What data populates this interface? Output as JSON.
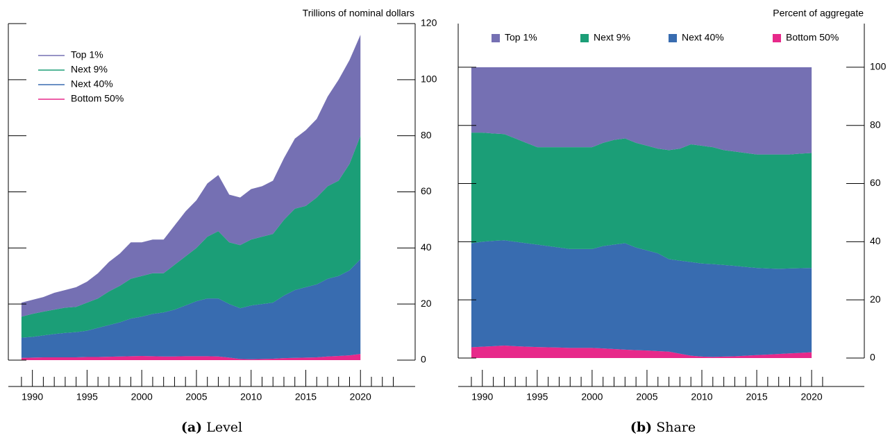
{
  "chart_data": [
    {
      "type": "area",
      "caption_label": "(a)",
      "caption": "Level",
      "y_label": "Trillions of nominal dollars",
      "legend": "upper left",
      "legend_marker": "line",
      "xlim": [
        1987.8,
        2025
      ],
      "xticks": [
        1990,
        1995,
        2000,
        2005,
        2010,
        2015,
        2020
      ],
      "xminorticks": [
        1989,
        1991,
        1992,
        1993,
        1994,
        1996,
        1997,
        1998,
        1999,
        2001,
        2002,
        2003,
        2004,
        2006,
        2007,
        2008,
        2009,
        2011,
        2012,
        2013,
        2014,
        2016,
        2017,
        2018,
        2019,
        2021,
        2022,
        2023
      ],
      "ylim": [
        0,
        120
      ],
      "yticks": [
        0,
        20,
        40,
        60,
        80,
        100,
        120
      ],
      "x": [
        1989,
        1990,
        1991,
        1992,
        1993,
        1994,
        1995,
        1996,
        1997,
        1998,
        1999,
        2000,
        2001,
        2002,
        2003,
        2004,
        2005,
        2006,
        2007,
        2008,
        2009,
        2010,
        2011,
        2012,
        2013,
        2014,
        2015,
        2016,
        2017,
        2018,
        2019,
        2020
      ],
      "series": [
        {
          "name": "Bottom 50%",
          "color": "#e7298a",
          "values": [
            0.8,
            0.9,
            1.0,
            1.0,
            1.0,
            1.0,
            1.1,
            1.1,
            1.2,
            1.3,
            1.4,
            1.5,
            1.4,
            1.3,
            1.3,
            1.4,
            1.4,
            1.4,
            1.3,
            0.9,
            0.4,
            0.3,
            0.4,
            0.5,
            0.7,
            0.8,
            0.9,
            1.0,
            1.3,
            1.5,
            1.7,
            2.2
          ]
        },
        {
          "name": "Next 40%",
          "color": "#386cb0",
          "values": [
            7.2,
            7.4,
            7.8,
            8.3,
            8.7,
            9.0,
            9.4,
            10.4,
            11.3,
            12.2,
            13.4,
            14.0,
            15.1,
            15.7,
            16.7,
            18.1,
            19.6,
            20.6,
            20.7,
            19.1,
            18.1,
            19.2,
            19.6,
            20.0,
            22.3,
            24.2,
            25.1,
            26.0,
            27.7,
            28.5,
            30.3,
            33.8
          ]
        },
        {
          "name": "Next 9%",
          "color": "#1b9e77",
          "values": [
            7.5,
            8.2,
            8.5,
            8.7,
            9.0,
            9.0,
            10.0,
            10.5,
            12.0,
            13.0,
            14.2,
            14.5,
            14.5,
            14.0,
            16.0,
            17.5,
            19.0,
            22.0,
            24.0,
            22.0,
            22.5,
            23.5,
            24.0,
            24.5,
            27.0,
            29.0,
            29.0,
            31.0,
            33.0,
            34.0,
            38.0,
            44.0
          ]
        },
        {
          "name": "Top 1%",
          "color": "#7570b3",
          "values": [
            5,
            5,
            5.2,
            6,
            6.3,
            7,
            7.5,
            9,
            10.5,
            11.5,
            13,
            12,
            12,
            12,
            14,
            16,
            17,
            19,
            20,
            17,
            17,
            18,
            18,
            19,
            22,
            25,
            27,
            28,
            32,
            36,
            37,
            36
          ]
        }
      ]
    },
    {
      "type": "area",
      "caption_label": "(b)",
      "caption": "Share",
      "y_label": "Percent of aggregate",
      "legend": "upper center",
      "legend_marker": "square",
      "xlim": [
        1987.8,
        2024.8
      ],
      "xticks": [
        1990,
        1995,
        2000,
        2005,
        2010,
        2015,
        2020
      ],
      "xminorticks": [
        1989,
        1991,
        1992,
        1993,
        1994,
        1996,
        1997,
        1998,
        1999,
        2001,
        2002,
        2003,
        2004,
        2006,
        2007,
        2008,
        2009,
        2011,
        2012,
        2013,
        2014,
        2016,
        2017,
        2018,
        2019,
        2021
      ],
      "ylim": [
        0,
        115
      ],
      "yticks": [
        0,
        20,
        40,
        60,
        80,
        100
      ],
      "x": [
        1989,
        1990,
        1991,
        1992,
        1993,
        1994,
        1995,
        1996,
        1997,
        1998,
        1999,
        2000,
        2001,
        2002,
        2003,
        2004,
        2005,
        2006,
        2007,
        2008,
        2009,
        2010,
        2011,
        2012,
        2013,
        2014,
        2015,
        2016,
        2017,
        2018,
        2019,
        2020
      ],
      "series": [
        {
          "name": "Bottom 50%",
          "color": "#e7298a",
          "values": [
            3.7,
            3.9,
            4.1,
            4.3,
            4.1,
            3.9,
            3.8,
            3.7,
            3.6,
            3.5,
            3.5,
            3.5,
            3.3,
            3.1,
            2.9,
            2.7,
            2.6,
            2.4,
            2.2,
            1.5,
            0.8,
            0.5,
            0.4,
            0.5,
            0.6,
            0.8,
            1.0,
            1.2,
            1.4,
            1.6,
            1.8,
            2.0
          ]
        },
        {
          "name": "Next 40%",
          "color": "#386cb0",
          "values": [
            35.8,
            36.1,
            36.2,
            36.2,
            35.9,
            35.6,
            35.2,
            34.8,
            34.4,
            34.0,
            34.0,
            34.0,
            35.2,
            35.9,
            36.6,
            35.3,
            34.4,
            33.6,
            31.8,
            32.0,
            32.2,
            32.0,
            31.9,
            31.5,
            31.1,
            30.5,
            30.0,
            29.6,
            29.3,
            29.2,
            29.1,
            29.0
          ]
        },
        {
          "name": "Next 9%",
          "color": "#1b9e77",
          "values": [
            38,
            37.5,
            36.9,
            36.5,
            35.5,
            34.5,
            33.5,
            34,
            34.5,
            35,
            35,
            35,
            35.5,
            36,
            36,
            36,
            36,
            36,
            37.5,
            38.5,
            40.5,
            40.5,
            40.2,
            39.5,
            39.3,
            39.2,
            39,
            39.2,
            39.3,
            39.2,
            39.4,
            39.5
          ]
        },
        {
          "name": "Top 1%",
          "color": "#7570b3",
          "values": [
            22.5,
            22.5,
            22.8,
            23,
            24.5,
            26,
            27.5,
            27.5,
            27.5,
            27.5,
            27.5,
            27.5,
            26,
            25,
            24.5,
            26,
            27,
            28,
            28.5,
            28,
            26.5,
            27,
            27.5,
            28.5,
            29,
            29.5,
            30,
            30,
            30,
            30,
            29.7,
            29.5
          ]
        }
      ]
    }
  ]
}
